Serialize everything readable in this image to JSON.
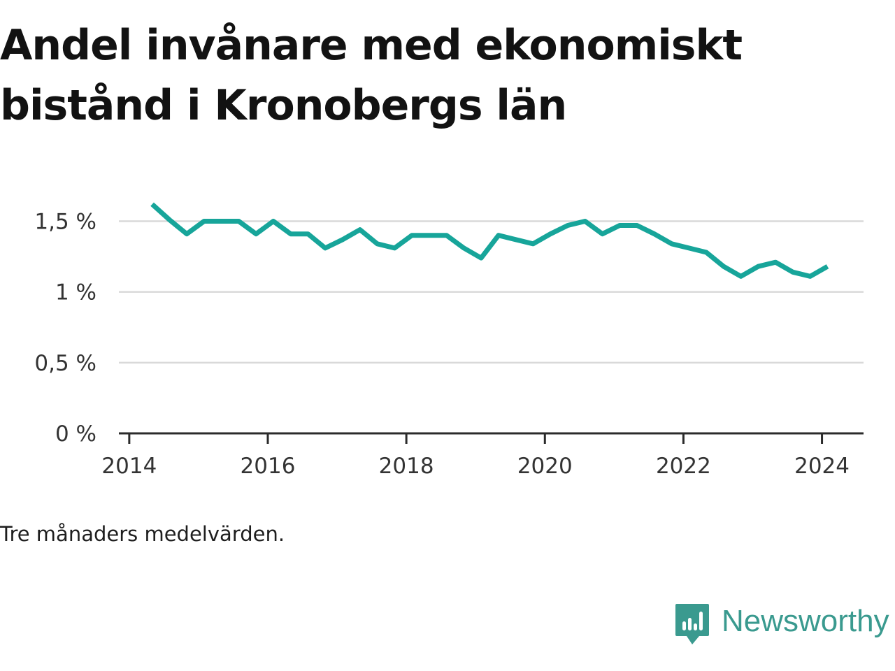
{
  "title": "Andel invånare med ekonomiskt bistånd i Kronobergs län",
  "caption": "Tre månaders medelvärden.",
  "brand": {
    "name": "Newsworthy",
    "icon": "newsworthy-logo-icon",
    "color": "#3a9a8f"
  },
  "colors": {
    "line": "#17a59a",
    "grid": "#d9d9d9",
    "axis": "#2b2b2b",
    "text": "#333333"
  },
  "chart_data": {
    "type": "line",
    "title": "Andel invånare med ekonomiskt bistånd i Kronobergs län",
    "xlabel": "",
    "ylabel": "",
    "xlim": [
      2013.85,
      2024.6
    ],
    "ylim": [
      0,
      1.7
    ],
    "grid": true,
    "y_ticks": [
      {
        "value": 0,
        "label": "0 %"
      },
      {
        "value": 0.5,
        "label": "0,5 %"
      },
      {
        "value": 1,
        "label": "1 %"
      },
      {
        "value": 1.5,
        "label": "1,5 %"
      }
    ],
    "x_ticks": [
      {
        "value": 2014,
        "label": "2014"
      },
      {
        "value": 2016,
        "label": "2016"
      },
      {
        "value": 2018,
        "label": "2018"
      },
      {
        "value": 2020,
        "label": "2020"
      },
      {
        "value": 2022,
        "label": "2022"
      },
      {
        "value": 2024,
        "label": "2024"
      }
    ],
    "series": [
      {
        "x": [
          2014.33,
          2014.58,
          2014.83,
          2015.08,
          2015.33,
          2015.58,
          2015.83,
          2016.08,
          2016.33,
          2016.58,
          2016.83,
          2017.08,
          2017.33,
          2017.58,
          2017.83,
          2018.08,
          2018.33,
          2018.58,
          2018.83,
          2019.08,
          2019.33,
          2019.58,
          2019.83,
          2020.08,
          2020.33,
          2020.58,
          2020.83,
          2021.08,
          2021.33,
          2021.58,
          2021.83,
          2022.08,
          2022.33,
          2022.58,
          2022.83,
          2023.08,
          2023.33,
          2023.58,
          2023.83,
          2024.08
        ],
        "y": [
          1.62,
          1.51,
          1.41,
          1.5,
          1.5,
          1.5,
          1.41,
          1.5,
          1.41,
          1.41,
          1.31,
          1.37,
          1.44,
          1.34,
          1.31,
          1.4,
          1.4,
          1.4,
          1.31,
          1.24,
          1.4,
          1.37,
          1.34,
          1.41,
          1.47,
          1.5,
          1.41,
          1.47,
          1.47,
          1.41,
          1.34,
          1.31,
          1.28,
          1.18,
          1.11,
          1.18,
          1.21,
          1.14,
          1.11,
          1.18
        ]
      }
    ]
  }
}
